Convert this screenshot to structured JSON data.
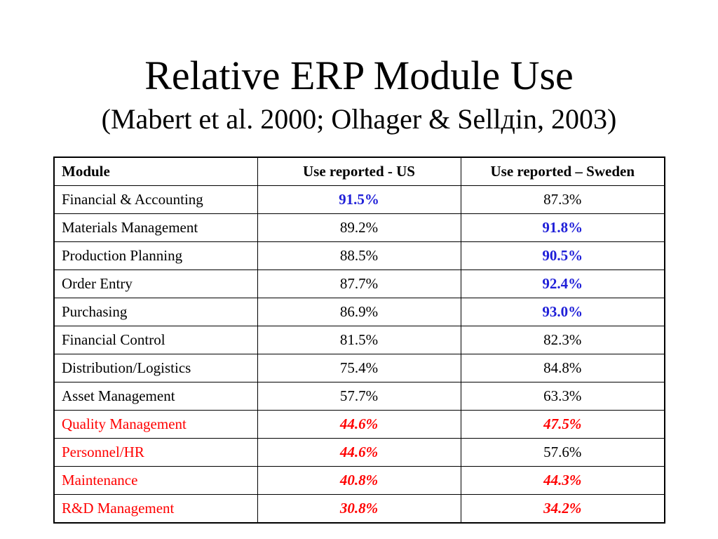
{
  "slide": {
    "title": "Relative ERP Module Use",
    "subtitle": "(Mabert et al. 2000; Olhager & Sellдin, 2003)"
  },
  "colors": {
    "blue_highlight": "#1f1fd8",
    "red_highlight": "#ff0000",
    "text": "#000000"
  },
  "table": {
    "headers": [
      "Module",
      "Use reported - US",
      "Use reported – Sweden"
    ],
    "rows": [
      {
        "module": "Financial & Accounting",
        "us": "91.5%",
        "sweden": "87.3%",
        "module_style": "normal",
        "us_style": "blue",
        "sweden_style": "normal"
      },
      {
        "module": "Materials Management",
        "us": "89.2%",
        "sweden": "91.8%",
        "module_style": "normal",
        "us_style": "normal",
        "sweden_style": "blue"
      },
      {
        "module": "Production Planning",
        "us": "88.5%",
        "sweden": "90.5%",
        "module_style": "normal",
        "us_style": "normal",
        "sweden_style": "blue"
      },
      {
        "module": "Order Entry",
        "us": "87.7%",
        "sweden": "92.4%",
        "module_style": "normal",
        "us_style": "normal",
        "sweden_style": "blue"
      },
      {
        "module": "Purchasing",
        "us": "86.9%",
        "sweden": "93.0%",
        "module_style": "normal",
        "us_style": "normal",
        "sweden_style": "blue"
      },
      {
        "module": "Financial Control",
        "us": "81.5%",
        "sweden": "82.3%",
        "module_style": "normal",
        "us_style": "normal",
        "sweden_style": "normal"
      },
      {
        "module": "Distribution/Logistics",
        "us": "75.4%",
        "sweden": "84.8%",
        "module_style": "normal",
        "us_style": "normal",
        "sweden_style": "normal"
      },
      {
        "module": "Asset Management",
        "us": "57.7%",
        "sweden": "63.3%",
        "module_style": "normal",
        "us_style": "normal",
        "sweden_style": "normal"
      },
      {
        "module": "Quality Management",
        "us": "44.6%",
        "sweden": "47.5%",
        "module_style": "red",
        "us_style": "red",
        "sweden_style": "red"
      },
      {
        "module": "Personnel/HR",
        "us": "44.6%",
        "sweden": "57.6%",
        "module_style": "red",
        "us_style": "red",
        "sweden_style": "normal"
      },
      {
        "module": "Maintenance",
        "us": "40.8%",
        "sweden": "44.3%",
        "module_style": "red",
        "us_style": "red",
        "sweden_style": "red"
      },
      {
        "module": "R&D Management",
        "us": "30.8%",
        "sweden": "34.2%",
        "module_style": "red",
        "us_style": "red",
        "sweden_style": "red"
      }
    ]
  }
}
